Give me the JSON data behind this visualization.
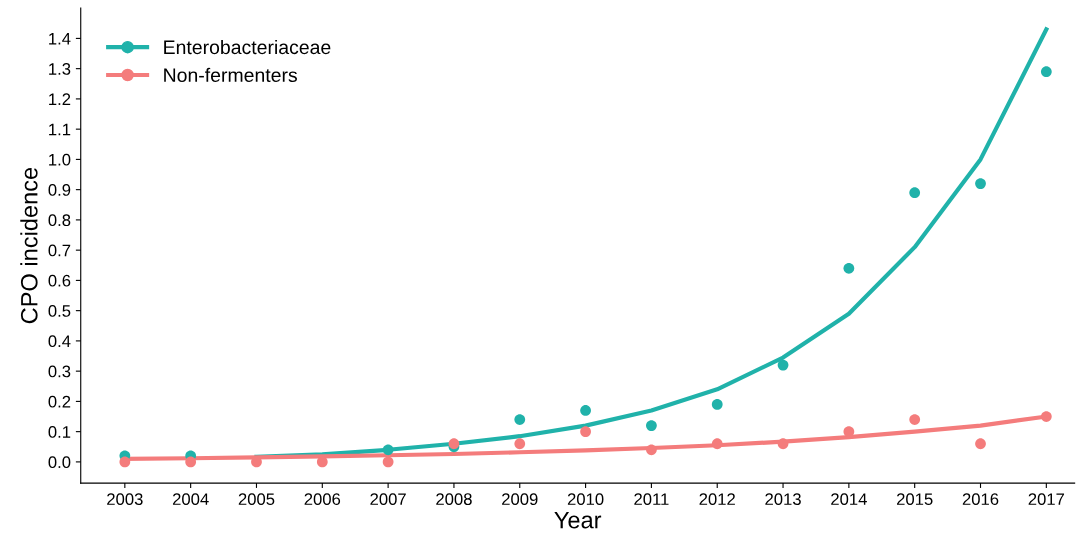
{
  "chart_data": {
    "type": "scatter",
    "xlabel": "Year",
    "ylabel": "CPO incidence",
    "categories": [
      "2003",
      "2004",
      "2005",
      "2006",
      "2007",
      "2008",
      "2009",
      "2010",
      "2011",
      "2012",
      "2013",
      "2014",
      "2015",
      "2016",
      "2017"
    ],
    "series": [
      {
        "name": "Enterobacteriaceae",
        "color": "#20b2aa",
        "marker": "circle",
        "values": [
          0.02,
          0.02,
          null,
          null,
          0.04,
          0.05,
          0.14,
          0.17,
          0.12,
          0.19,
          0.32,
          0.64,
          0.89,
          0.92,
          1.29
        ]
      },
      {
        "name": "Non-fermenters",
        "color": "#f47c7c",
        "marker": "circle",
        "values": [
          0.0,
          0.0,
          0.0,
          0.0,
          0.0,
          0.06,
          0.06,
          0.1,
          0.04,
          0.06,
          0.06,
          0.1,
          0.14,
          0.06,
          0.15
        ]
      },
      {
        "type": "line",
        "color": "#20b2aa",
        "marker": "none",
        "values": [
          null,
          null,
          0.017,
          0.025,
          0.04,
          0.06,
          0.085,
          0.12,
          0.17,
          0.24,
          0.345,
          0.49,
          0.71,
          1.0,
          1.43
        ]
      },
      {
        "type": "line",
        "color": "#f47c7c",
        "marker": "none",
        "values": [
          0.01,
          0.012,
          0.015,
          0.018,
          0.022,
          0.026,
          0.032,
          0.038,
          0.046,
          0.055,
          0.067,
          0.082,
          0.1,
          0.12,
          0.15
        ]
      }
    ],
    "ylim": [
      -0.07,
      1.5
    ],
    "yticks": [
      {
        "value": 0,
        "label": "0.0"
      },
      0.1,
      0.2,
      0.3,
      0.4,
      0.5,
      0.6,
      0.7,
      0.8,
      0.9,
      {
        "value": 1,
        "label": "1.0"
      },
      1.1,
      1.2,
      1.3,
      1.4
    ],
    "grid": false,
    "legend": "top left"
  }
}
